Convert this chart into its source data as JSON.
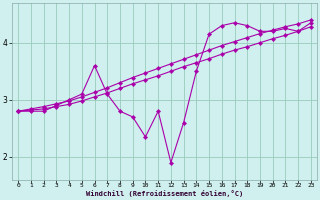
{
  "xlabel": "Windchill (Refroidissement éolien,°C)",
  "bg_color": "#cff0ee",
  "line_color": "#aa00aa",
  "grid_color": "#99ccbb",
  "x_ticks": [
    0,
    1,
    2,
    3,
    4,
    5,
    6,
    7,
    8,
    9,
    10,
    11,
    12,
    13,
    14,
    15,
    16,
    17,
    18,
    19,
    20,
    21,
    22,
    23
  ],
  "y_ticks": [
    2,
    3,
    4
  ],
  "xlim": [
    -0.5,
    23.5
  ],
  "ylim": [
    1.6,
    4.7
  ],
  "series_zigzag": [
    2.8,
    2.8,
    2.8,
    2.9,
    3.0,
    3.1,
    3.6,
    3.1,
    2.8,
    2.7,
    2.35,
    2.8,
    1.9,
    2.6,
    3.5,
    4.15,
    4.3,
    4.35,
    4.3,
    4.2,
    4.2,
    4.25,
    4.2,
    4.35
  ],
  "series_line1": [
    2.8,
    2.82,
    2.84,
    2.88,
    2.92,
    2.98,
    3.05,
    3.12,
    3.2,
    3.28,
    3.35,
    3.42,
    3.5,
    3.58,
    3.65,
    3.72,
    3.8,
    3.87,
    3.93,
    4.0,
    4.07,
    4.13,
    4.2,
    4.28
  ],
  "series_line2": [
    2.8,
    2.84,
    2.88,
    2.93,
    2.98,
    3.05,
    3.13,
    3.21,
    3.3,
    3.39,
    3.47,
    3.55,
    3.63,
    3.71,
    3.79,
    3.87,
    3.95,
    4.02,
    4.09,
    4.16,
    4.22,
    4.28,
    4.33,
    4.4
  ]
}
